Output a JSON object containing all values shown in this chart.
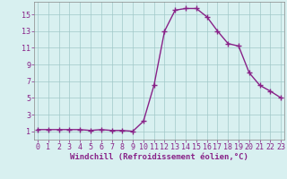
{
  "x": [
    0,
    1,
    2,
    3,
    4,
    5,
    6,
    7,
    8,
    9,
    10,
    11,
    12,
    13,
    14,
    15,
    16,
    17,
    18,
    19,
    20,
    21,
    22,
    23
  ],
  "y": [
    1.2,
    1.2,
    1.2,
    1.2,
    1.2,
    1.1,
    1.2,
    1.1,
    1.1,
    1.0,
    2.2,
    6.5,
    13.0,
    15.5,
    15.7,
    15.7,
    14.7,
    13.0,
    11.5,
    11.2,
    8.0,
    6.5,
    5.8,
    5.0
  ],
  "line_color": "#882288",
  "marker": "+",
  "marker_size": 4,
  "marker_linewidth": 1.0,
  "line_width": 1.0,
  "bg_color": "#d8f0f0",
  "grid_color": "#a0c8c8",
  "xlabel": "Windchill (Refroidissement éolien,°C)",
  "xlabel_fontsize": 6.5,
  "tick_fontsize": 6,
  "yticks": [
    1,
    3,
    5,
    7,
    9,
    11,
    13,
    15
  ],
  "xticks": [
    0,
    1,
    2,
    3,
    4,
    5,
    6,
    7,
    8,
    9,
    10,
    11,
    12,
    13,
    14,
    15,
    16,
    17,
    18,
    19,
    20,
    21,
    22,
    23
  ],
  "xlim": [
    -0.3,
    23.3
  ],
  "ylim": [
    0.0,
    16.5
  ]
}
